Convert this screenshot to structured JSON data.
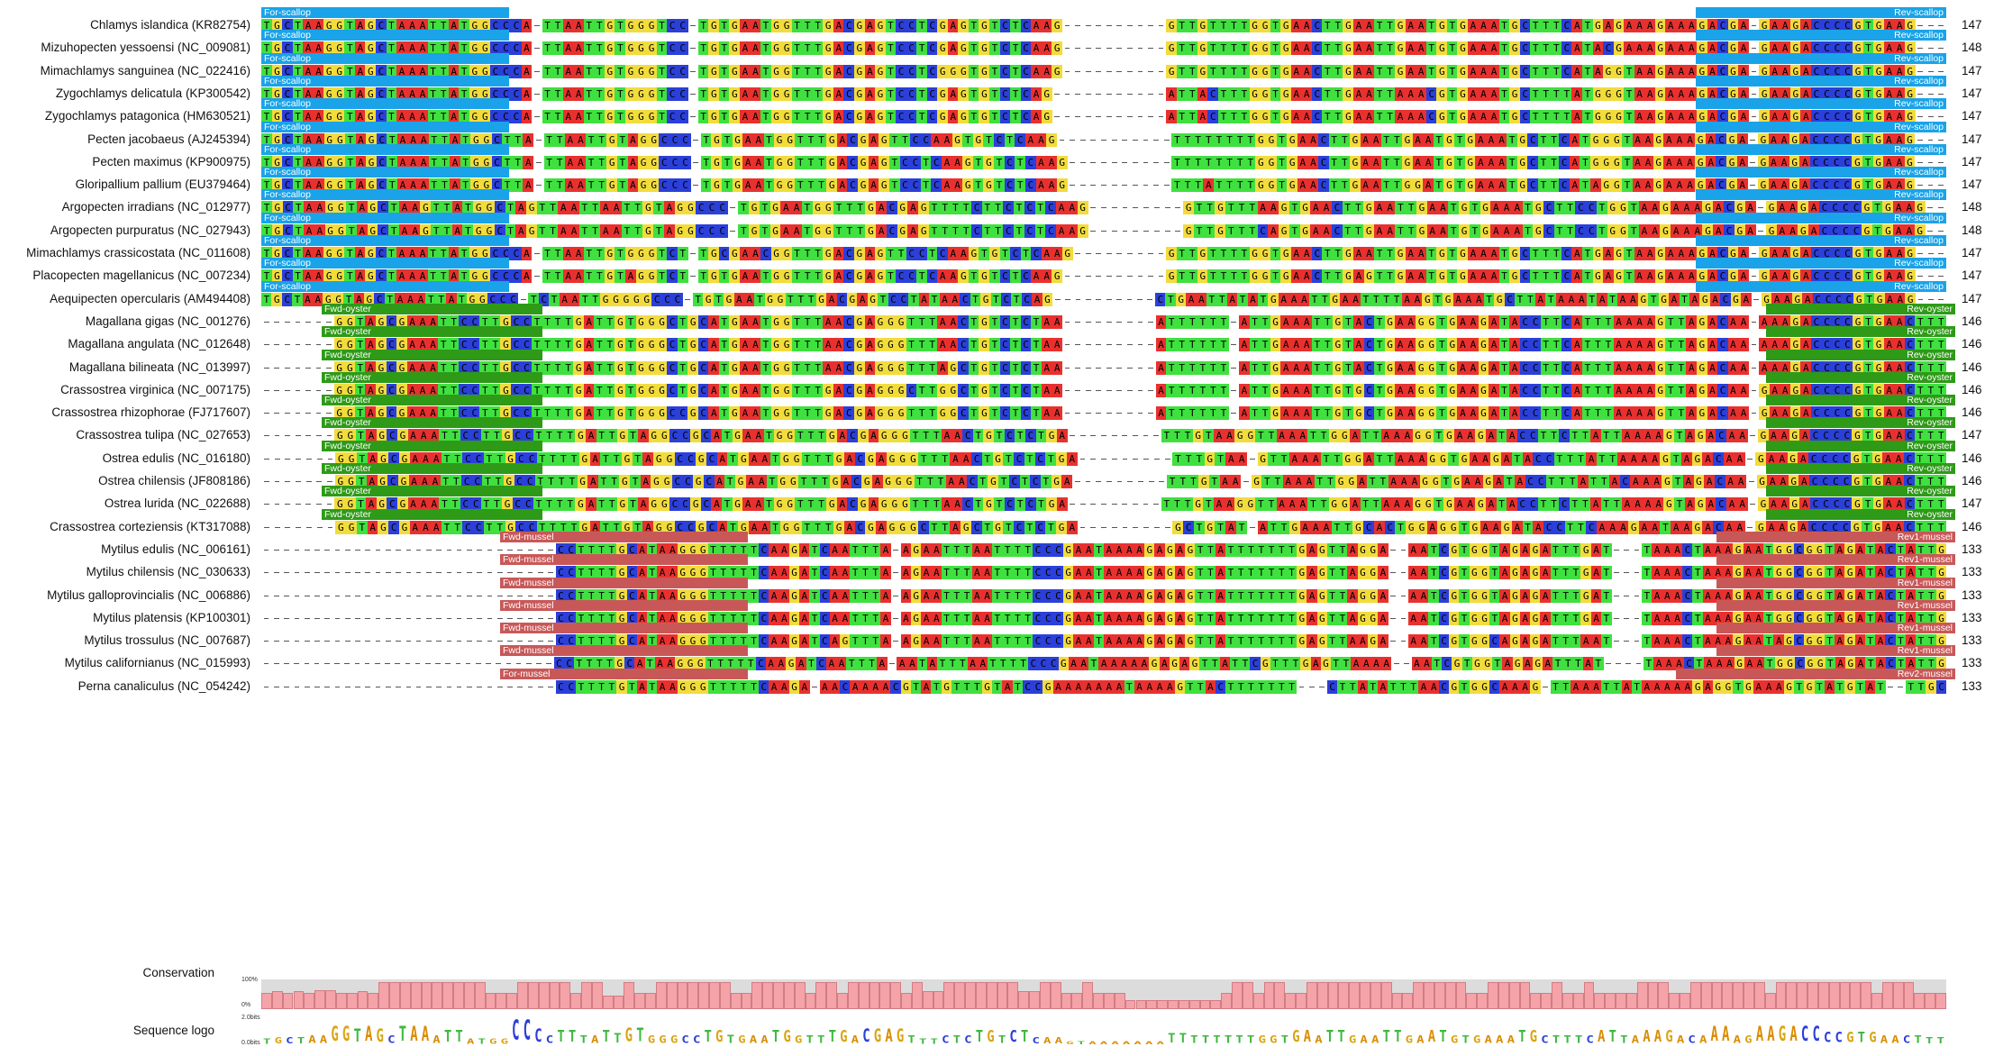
{
  "colors": {
    "A": "#e8312f",
    "C": "#2b3fd9",
    "G": "#f2dc3c",
    "T": "#3fe03f",
    "gap": "#555555",
    "scallop": "#1aa3e8",
    "oyster": "#2e9a18",
    "mussel": "#c85858",
    "conservation": "#f4a3a9",
    "conservation_bg": "#dcdcdc"
  },
  "icons": {
    "gap": "dash-line"
  },
  "groups": {
    "scallop": {
      "fwd_label": "For-scallop",
      "rev_label": "Rev-scallop"
    },
    "oyster": {
      "fwd_label": "Fwd-oyster",
      "rev_label": "Rev-oyster"
    },
    "mussel": {
      "fwd_label": "Fwd-mussel",
      "rev_label": "Rev1-mussel"
    },
    "perna": {
      "fwd_label": "For-mussel",
      "rev_label": "Rev2-mussel"
    }
  },
  "sequences": [
    {
      "name": "Chlamys islandica (KR82754)",
      "length": "147",
      "group": "scallop",
      "seq": "TGCTAAGGTAGCTAAATTATGGCCCA-TTAATTGTGGGTCC-TGTGAATGGTTTGACGAGTCCTCGAGTGTCTCAAG----------GTTGTTTTGGTGAACTTGAATTGAATGTGAAATGCTTTCATGAGAAAGAAAGACGA-GAAGACCCCGTGAAG---"
    },
    {
      "name": "Mizuhopecten yessoensi (NC_009081)",
      "length": "148",
      "group": "scallop",
      "seq": "TGCTAAGGTAGCTAAATTATGGCCCA-TTAATTGTGGGTCC-TGTGAATGGTTTGACGAGTCCTCGAGTGTCTCAAG----------GTTGTTTTGGTGAACTTGAATTGAATGTGAAATGCTTTCATACGAAAGAAAGACGA-GAAGACCCCGTGAAG---"
    },
    {
      "name": "Mimachlamys sanguinea (NC_022416)",
      "length": "147",
      "group": "scallop",
      "seq": "TGCTAAGGTAGCTAAATTATGGCCCA-TTAATTGTGGGTCC-TGTGAATGGTTTGACGAGTCCTCGGGTGTCTCAAG----------GTTGTTTTGGTGAACTTGAATTGAATGTGAAATGCTTTCATAGGTAAGAAAGACGA-GAAGACCCCGTGAAG---"
    },
    {
      "name": "Zygochlamys delicatula (KP300542)",
      "length": "147",
      "group": "scallop",
      "seq": "TGCTAAGGTAGCTAAATTATGGCCCA-TTAATTGTGGGTCC-TGTGAATGGTTTGACGAGTCCTCGAGTGTCTCAG-----------ATTACTTTGGTGAACTTGAATTAAACGTGAAATGCTTTTATGGGTAAGAAAGACGA-GAAGACCCCGTGAAG---"
    },
    {
      "name": "Zygochlamys patagonica (HM630521)",
      "length": "147",
      "group": "scallop",
      "seq": "TGCTAAGGTAGCTAAATTATGGCCCA-TTAATTGTGGGTCC-TGTGAATGGTTTGACGAGTCCTCGAGTGTCTCAG-----------ATTACTTTGGTGAACTTGAATTAAACGTGAAATGCTTTTATGGGTAAGAAAGACGA-GAAGACCCCGTGAAG---"
    },
    {
      "name": "Pecten jacobaeus (AJ245394)",
      "length": "147",
      "group": "scallop",
      "seq": "TGCTAAGGTAGCTAAATTATGGCTTA-TTAATTGTAGGCCC-TGTGAATGGTTTGACGAGTTCCAAGTGTCTCAAG-----------TTTTTTTTGGTGAACTTGAATTGAATGTGAAATGCTTCATGGGTAAGAAAGACGA-GAAGACCCCGTGAAG---"
    },
    {
      "name": "Pecten maximus (KP900975)",
      "length": "147",
      "group": "scallop",
      "seq": "TGCTAAGGTAGCTAAATTATGGCTTA-TTAATTGTAGGCCC-TGTGAATGGTTTGACGAGTCCTCAAGTGTCTCAAG----------TTTTTTTTGGTGAACTTGAATTGAATGTGAAATGCTTCATGGGTAAGAAAGACGA-GAAGACCCCGTGAAG---"
    },
    {
      "name": "Gloripallium pallium (EU379464)",
      "length": "147",
      "group": "scallop",
      "seq": "TGCTAAGGTAGCTAAATTATGGCTTA-TTAATTGTAGGCCC-TGTGAATGGTTTGACGAGTCCTCAAGTGTCTCAAG----------TTTATTTTGGTGAACTTGAATTGGATGTGAAATGCTTCATAGGTAAGAAAGACGA-GAAGACCCCGTGAAG---"
    },
    {
      "name": "Argopecten irradians (NC_012977)",
      "length": "148",
      "group": "scallop",
      "seq": "TGCTAAGGTAGCTAAGTTATGGCTAGTTAATTAATTGTAGGCCC-TGTGAATGGTTTGACGAGTTTTCTTCTCTCAAG---------GTTGTTTAAGTGAACTTGAATTGAATGTGAAATGCTTCCTGGTAAGAAAGACGA-GAAGACCCCGTGAAG--"
    },
    {
      "name": "Argopecten purpuratus (NC_027943)",
      "length": "148",
      "group": "scallop",
      "seq": "TGCTAAGGTAGCTAAGTTATGGCTAGTTAATTAATTGTAGGCCC-TGTGAATGGTTTGACGAGTTTTCTTCTCTCAAG---------GTTGTTTCAGTGAACTTGAATTGAATGTGAAATGCTTCCTGGTAAGAAAGACGA-GAAGACCCCGTGAAG--"
    },
    {
      "name": "Mimachlamys crassicostata (NC_011608)",
      "length": "147",
      "group": "scallop",
      "seq": "TGCTAAGGTAGCTAAATTATGGCCCA-TTAATTGTGGGTCT-TGCGAACGGTTTGACGAGTTCCTCAAGTGTCTCAAG---------GTTGTTTTGGTGAACTTGAATTGAATGTGAAATGCTTTCATGAGTAAGAAAGACGA-GAAGACCCCGTGAAG---"
    },
    {
      "name": "Placopecten magellanicus (NC_007234)",
      "length": "147",
      "group": "scallop",
      "seq": "TGCTAAGGTAGCTAAATTATGGCCCA-TTAATTGTAGGTCT-TGTGAATGGTTTGACGAGTCCTCAAGTGTCTCAAG----------GTTGTTTTGGTGAACTTGAGTTGAATGTGAAATGCTTTCATGAGTAAGAAAGACGA-GAAGACCCCGTGAAG---"
    },
    {
      "name": "Aequipecten opercularis (AM494408)",
      "length": "147",
      "group": "scallop",
      "seq": "TGCTAAGGTAGCTAAATTATGGCCC-TCTAATTGGGGGCCC-TGTGAATGGTTTGACGAGTCCTATAACTGTCTCAG----------CTGAATTATATGAAATTGAATTTTAAGTGAAATGCTTATAAATATAAGTGATAGACGA-GAAGACCCCGTGAAG---"
    },
    {
      "name": "Magallana gigas (NC_001276)",
      "length": "146",
      "group": "oyster",
      "seq": "-------GGTAGCGAAATTCCTTGCCTTTTGATTGTGGGCTGCATGAATGGTTTAACGAGGGTTTAACTGTCTCTAA---------ATTTTTT-ATTGAAATTGTACTGAAGGTGAAGATACCTTCATTTAAAAGTTAGACAA-AAAGACCCCGTGAACTTT"
    },
    {
      "name": "Magallana angulata (NC_012648)",
      "length": "146",
      "group": "oyster",
      "seq": "-------GGTAGCGAAATTCCTTGCCTTTTGATTGTGGGCTGCATGAATGGTTTAACGAGGGTTTAACTGTCTCTAA---------ATTTTTT-ATTGAAATTGTACTGAAGGTGAAGATACCTTCATTTAAAAGTTAGACAA-AAAGACCCCGTGAACTTT"
    },
    {
      "name": "Magallana bilineata (NC_013997)",
      "length": "146",
      "group": "oyster",
      "seq": "-------GGTAGCGAAATTCCTTGCCTTTTGATTGTGGGCTGCATGAATGGTTTAACGAGGGTTTAGCTGTCTCTAA---------ATTTTTT-ATTGAAATTGTACTGAAGGTGAAGATACCTTCATTTAAAAGTTAGACAA-AAAGACCCCGTGAACTTT"
    },
    {
      "name": "Crassostrea virginica (NC_007175)",
      "length": "146",
      "group": "oyster",
      "seq": "-------GGTAGCGAAATTCCTTGCCTTTTGATTGTGGGCTGCATGAATGGTTTGACGAGGGCTTGGCTGTCTCTAA---------ATTTTTT-ATTGAAATTGTGCTGAAGGTGAAGATACCTTCATTTAAAAGTTAGACAA-GAAGACCCCGTGAACTTT"
    },
    {
      "name": "Crassostrea rhizophorae (FJ717607)",
      "length": "146",
      "group": "oyster",
      "seq": "-------GGTAGCGAAATTCCTTGCCTTTTGATTGTGGGCCGCATGAATGGTTTGACGAGGGTTTGGCTGTCTCTAA---------ATTTTTT-ATTGAAATTGTGCTGAAGGTGAAGATACCTTCATTTAAAAGTTAGACAA-GAAGACCCCGTGAACTTT"
    },
    {
      "name": "Crassostrea tulipa (NC_027653)",
      "length": "147",
      "group": "oyster",
      "seq": "-------GGTAGCGAAATTCCTTGCCTTTTGATTGTAGGCCGCATGAATGGTTTGACGAGGGTTTAACTGTCTCTGA---------TTTGTAAGGTTAAATTGGATTAAAGGTGAAGATACCTTCTTATTAAAAGTAGACAA-GAAGACCCCGTGAACTTT"
    },
    {
      "name": "Ostrea edulis (NC_016180)",
      "length": "146",
      "group": "oyster",
      "seq": "-------GGTAGCGAAATTCCTTGCCTTTTGATTGTAGGCCGCATGAATGGTTTGACGAGGGTTTAACTGTCTCTGA---------TTTGTAA-GTTAAATTGGATTAAAGGTGAAGATACCTTTATTAAAAGTAGACAA-GAAGACCCCGTGAACTTT"
    },
    {
      "name": "Ostrea chilensis (JF808186)",
      "length": "146",
      "group": "oyster",
      "seq": "-------GGTAGCGAAATTCCTTGCCTTTTGATTGTAGGCCGCATGAATGGTTTGACGAGGGTTTAACTGTCTCTGA---------TTTGTAA-GTTAAATTGGATTAAAGGTGAAGATACCTTTATTACAAAGTAGACAA-GAAGACCCCGTGAACTTT"
    },
    {
      "name": "Ostrea lurida (NC_022688)",
      "length": "147",
      "group": "oyster",
      "seq": "-------GGTAGCGAAATTCCTTGCCTTTTGATTGTAGGCCGCATGAATGGTTTGACGAGGGTTTAACTGTCTCTGA---------TTTGTAAGGTTAAATTGGATTAAAGGTGAAGATACCTTCTTATTAAAAGTAGACAA-GAAGACCCCGTGAACTTT"
    },
    {
      "name": "Crassostrea corteziensis (KT317088)",
      "length": "146",
      "group": "oyster",
      "seq": "-------GGTAGCGAAATTCCTTGCCTTTTGATTGTAGGCCGCATGAATGGTTTGACGAGGGCTTAGCTGTCTCTGA---------GCTGTAT-ATTGAAATTGCACTGGAGGTGAAGATACCTTCAAAGAATAAGACAA-GAAGACCCCGTGAACTTT"
    },
    {
      "name": "Mytilus edulis (NC_006161)",
      "length": "133",
      "group": "mussel",
      "seq": "-----------------------------CCTTTTGCATAAGGGTTTTTCAAGATCAATTTA-AGAATTTAATTTTCCCGAATAAAAGAGAGTTATTTTTTTGAGTTAGGA--AATCGTGGTAGAGATTTGAT---TAAACTAAAGAATGGCGGTAGATACTATTG"
    },
    {
      "name": "Mytilus chilensis (NC_030633)",
      "length": "133",
      "group": "mussel",
      "seq": "-----------------------------CCTTTTGCATAAGGGTTTTTCAAGATCAATTTA-AGAATTTAATTTTCCCGAATAAAAGAGAGTTATTTTTTTGAGTTAGGA--AATCGTGGTAGAGATTTGAT---TAAACTAAAGAATGGCGGTAGATACTATTG"
    },
    {
      "name": "Mytilus galloprovincialis (NC_006886)",
      "length": "133",
      "group": "mussel",
      "seq": "-----------------------------CCTTTTGCATAAGGGTTTTTCAAGATCAATTTA-AGAATTTAATTTTCCCGAATAAAAGAGAGTTATTTTTTTGAGTTAGGA--AATCGTGGTAGAGATTTGAT---TAAACTAAAGAATGGCGGTAGATACTATTG"
    },
    {
      "name": "Mytilus platensis (KP100301)",
      "length": "133",
      "group": "mussel",
      "seq": "-----------------------------CCTTTTGCATAAGGGTTTTTCAAGATCAATTTA-AGAATTTAATTTTCCCGAATAAAAGAGAGTTATTTTTTTGAGTTAGGA--AATCGTGGTAGAGATTTGAT---TAAACTAAAGAATGGCGGTAGATACTATTG"
    },
    {
      "name": "Mytilus trossulus (NC_007687)",
      "length": "133",
      "group": "mussel",
      "seq": "-----------------------------CCTTTTGCATAAGGGTTTTTCAAGATCAGTTTA-AGAATTTAATTTTCCCGAATAAAAGAGAGTTATTTTTTTGAGTTAAGA--AATCGTGGCAGAGATTTAAT---TAAACTAAAGAATAGCGGTAGATACTATTG"
    },
    {
      "name": "Mytilus californianus (NC_015993)",
      "length": "133",
      "group": "mussel",
      "seq": "-----------------------------CCTTTTGCATAAGGGTTTTTCAAGATCAATTTA-AATATTTAATTTTCCCGAATAAAAAGAGAGTTATTCGTTTGAGTTAAAA--AATCGTGGTAGAGATTTAT----TAAACTAAAGAATGGCGGTAGATACTATTG"
    },
    {
      "name": "Perna canaliculus (NC_054242)",
      "length": "133",
      "group": "perna",
      "seq": "-----------------------------CCTTTTGTATAAGGGTTTTTCAAGA-AACAAAACGTATGTTTGTATCCGAAAAAAATAAAAGTTACTTTTTTT---CTTATATTTAACGTGGCAAAG-TTAAATTATAAAAAGAGGTGAAAGTGTATGTAT--TTGC"
    }
  ],
  "tracks": {
    "conservation_label": "Conservation",
    "logo_label": "Sequence logo",
    "scale_top": "100%",
    "scale_bottom": "0%",
    "logo_scale_top": "2.0bits",
    "logo_scale_bottom": "0.0bits"
  },
  "conservation": [
    0.55,
    0.6,
    0.55,
    0.6,
    0.55,
    0.65,
    0.65,
    0.55,
    0.55,
    0.6,
    0.55,
    0.9,
    0.9,
    0.9,
    0.9,
    0.9,
    0.9,
    0.9,
    0.9,
    0.9,
    0.9,
    0.55,
    0.55,
    0.55,
    0.9,
    0.9,
    0.9,
    0.9,
    0.9,
    0.55,
    0.9,
    0.9,
    0.45,
    0.45,
    0.9,
    0.55,
    0.55,
    0.9,
    0.9,
    0.9,
    0.9,
    0.9,
    0.9,
    0.9,
    0.55,
    0.55,
    0.9,
    0.9,
    0.9,
    0.9,
    0.9,
    0.55,
    0.9,
    0.9,
    0.55,
    0.9,
    0.9,
    0.9,
    0.9,
    0.9,
    0.55,
    0.9,
    0.6,
    0.6,
    0.9,
    0.9,
    0.9,
    0.9,
    0.9,
    0.9,
    0.9,
    0.6,
    0.6,
    0.9,
    0.9,
    0.55,
    0.55,
    0.9,
    0.55,
    0.55,
    0.55,
    0.3,
    0.3,
    0.3,
    0.3,
    0.3,
    0.3,
    0.3,
    0.3,
    0.3,
    0.55,
    0.9,
    0.9,
    0.55,
    0.9,
    0.9,
    0.55,
    0.55,
    0.9,
    0.9,
    0.9,
    0.9,
    0.9,
    0.9,
    0.9,
    0.9,
    0.55,
    0.55,
    0.9,
    0.9,
    0.9,
    0.9,
    0.9,
    0.55,
    0.55,
    0.9,
    0.9,
    0.9,
    0.9,
    0.55,
    0.55,
    0.9,
    0.55,
    0.55,
    0.9,
    0.55,
    0.55,
    0.55,
    0.55,
    0.9,
    0.9,
    0.9,
    0.55,
    0.55,
    0.9,
    0.9,
    0.9,
    0.9,
    0.9,
    0.9,
    0.9,
    0.55,
    0.9,
    0.9,
    0.9,
    0.9,
    0.9,
    0.9,
    0.9,
    0.9,
    0.9,
    0.55,
    0.9,
    0.9,
    0.9,
    0.55,
    0.55,
    0.55
  ],
  "logo": "TGCTAAGGTAGCTAAATTATGGCCCCTTTATTGTGGGCCTGTGAATGGTTTGACGAGTTTCTCTGTCTCAAGTAAAAAAATTTTTTTTGGTGAATTGAATTGAATGTGAAATGCTTTCATTAAAGACAAAAGAAGACCCCGTGAACTTT",
  "logo_heights": [
    0.25,
    0.3,
    0.3,
    0.3,
    0.35,
    0.35,
    0.7,
    0.7,
    0.6,
    0.7,
    0.6,
    0.35,
    0.7,
    0.7,
    0.7,
    0.35,
    0.55,
    0.55,
    0.25,
    0.25,
    0.25,
    0.25,
    0.95,
    0.95,
    0.6,
    0.35,
    0.55,
    0.55,
    0.35,
    0.35,
    0.55,
    0.45,
    0.65,
    0.65,
    0.35,
    0.35,
    0.35,
    0.35,
    0.35,
    0.55,
    0.55,
    0.4,
    0.35,
    0.35,
    0.35,
    0.55,
    0.55,
    0.35,
    0.35,
    0.35,
    0.55,
    0.55,
    0.35,
    0.6,
    0.6,
    0.6,
    0.6,
    0.35,
    0.25,
    0.25,
    0.35,
    0.35,
    0.35,
    0.55,
    0.55,
    0.35,
    0.55,
    0.55,
    0.3,
    0.3,
    0.3,
    0.15,
    0.15,
    0.15,
    0.15,
    0.15,
    0.15,
    0.15,
    0.15,
    0.15,
    0.45,
    0.45,
    0.35,
    0.35,
    0.35,
    0.35,
    0.35,
    0.35,
    0.35,
    0.35,
    0.35,
    0.55,
    0.55,
    0.35,
    0.55,
    0.55,
    0.35,
    0.35,
    0.35,
    0.55,
    0.55,
    0.35,
    0.35,
    0.55,
    0.55,
    0.35,
    0.35,
    0.35,
    0.35,
    0.35,
    0.35,
    0.55,
    0.55,
    0.35,
    0.35,
    0.35,
    0.35,
    0.35,
    0.55,
    0.55,
    0.35,
    0.35,
    0.55,
    0.55,
    0.55,
    0.35,
    0.35,
    0.35,
    0.7,
    0.7,
    0.35,
    0.35,
    0.7,
    0.7,
    0.7,
    0.7,
    0.7,
    0.7,
    0.5,
    0.5,
    0.5,
    0.5,
    0.5,
    0.35,
    0.35,
    0.35,
    0.35
  ]
}
